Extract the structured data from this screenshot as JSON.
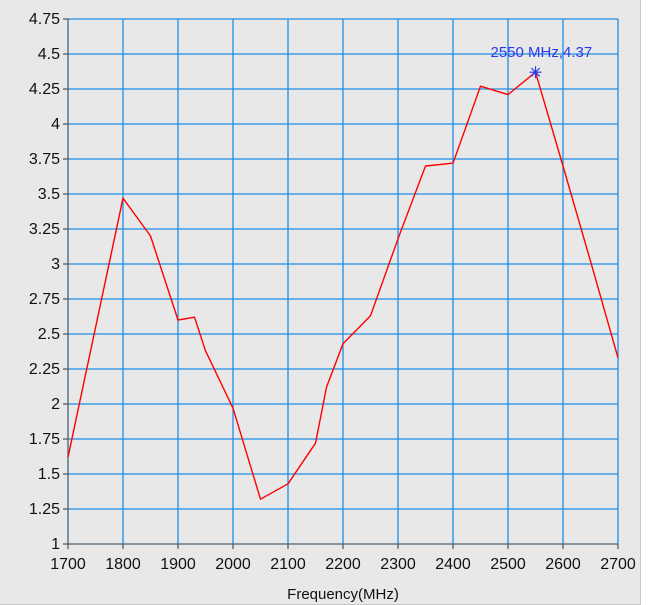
{
  "chart_data": {
    "type": "line",
    "title": "",
    "xlabel": "Frequency(MHz)",
    "ylabel": "",
    "xlim": [
      1700,
      2700
    ],
    "ylim": [
      1,
      4.75
    ],
    "grid": true,
    "x_ticks": [
      "1700",
      "1800",
      "1900",
      "2000",
      "2100",
      "2200",
      "2300",
      "2400",
      "2500",
      "2600",
      "2700"
    ],
    "y_ticks": [
      "1",
      "1.25",
      "1.5",
      "1.75",
      "2",
      "2.25",
      "2.5",
      "2.75",
      "3",
      "3.25",
      "3.5",
      "3.75",
      "4",
      "4.25",
      "4.5",
      "4.75"
    ],
    "series": [
      {
        "color": "#ff0000",
        "x": [
          1700,
          1800,
          1850,
          1900,
          1930,
          1950,
          2000,
          2050,
          2100,
          2150,
          2170,
          2200,
          2250,
          2300,
          2350,
          2400,
          2450,
          2500,
          2550,
          2600,
          2650,
          2700
        ],
        "y": [
          1.62,
          3.47,
          3.2,
          2.6,
          2.62,
          2.38,
          1.97,
          1.32,
          1.43,
          1.72,
          2.12,
          2.43,
          2.63,
          3.18,
          3.7,
          3.72,
          4.27,
          4.21,
          4.37,
          3.7,
          3.02,
          2.33
        ]
      }
    ],
    "marker": {
      "x": 2550,
      "y": 4.37,
      "label": "2550 MHz,4.37",
      "color": "#2a39e8"
    },
    "grid_color": "#1e8fe6",
    "plot_background": "#e8e8e8"
  }
}
